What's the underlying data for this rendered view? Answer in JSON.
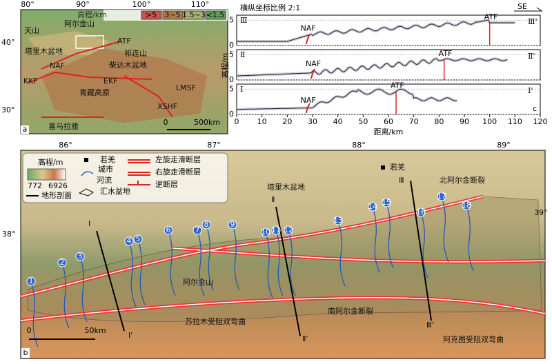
{
  "panel_a": {
    "label": "a",
    "lon_labels": [
      "80°",
      "90°",
      "100°",
      "110°"
    ],
    "lat_labels": [
      "40°",
      "30°"
    ],
    "legend_title": "高程/km",
    "legend": [
      {
        "label": ">5",
        "color": "#c9524a"
      },
      {
        "label": "3~5",
        "color": "#b07b4a"
      },
      {
        "label": "1.5~3",
        "color": "#a8b070"
      },
      {
        "label": "<1.5",
        "color": "#5f9e5a"
      }
    ],
    "places": [
      "天山",
      "阿尔金山",
      "塔里木盆地",
      "ATF",
      "祁连山",
      "柴达木盆地",
      "NAF",
      "KKF",
      "EKF",
      "青藏高原",
      "XSHF",
      "LMSF",
      "喜马拉雅"
    ],
    "scale": [
      "0",
      "500km"
    ]
  },
  "panel_c": {
    "label": "c",
    "title": "横纵坐标比例 2:1",
    "direction": "SE",
    "xlim": [
      0,
      120
    ],
    "xticks": [
      0,
      10,
      20,
      30,
      40,
      50,
      60,
      70,
      80,
      90,
      100,
      110,
      120
    ],
    "xlabel": "距离/km",
    "ylabel": "高程/m",
    "profiles": [
      {
        "start": "Ⅲ",
        "end": "Ⅲ'",
        "ylim": [
          0,
          6
        ],
        "yticks": [
          0,
          5
        ],
        "faults": [
          "NAF",
          "ATF"
        ]
      },
      {
        "start": "Ⅱ",
        "end": "Ⅱ'",
        "ylim": [
          0,
          6
        ],
        "yticks": [
          0,
          5
        ],
        "faults": [
          "NAF",
          "ATF"
        ]
      },
      {
        "start": "Ⅰ",
        "end": "Ⅰ'",
        "ylim": [
          0,
          6
        ],
        "yticks": [
          0,
          5
        ],
        "faults": [
          "NAF",
          "ATF"
        ]
      }
    ]
  },
  "panel_b": {
    "label": "b",
    "lon_labels": [
      "86°",
      "87°",
      "88°",
      "89°"
    ],
    "lat_labels": [
      "38°",
      "39°"
    ],
    "legend": {
      "title": "高程/m",
      "min": "772",
      "max": "6926",
      "items": [
        "若羌",
        "城市",
        "河流",
        "汇水盆地",
        "左旋走滑断层",
        "右旋走滑断层",
        "逆断层",
        "地形剖面"
      ]
    },
    "places": [
      "塔里木盆地",
      "若羌",
      "Ⅲ",
      "北阿尔金断裂",
      "Ⅱ",
      "Ⅰ",
      "阿尔金山",
      "南阿尔金断裂",
      "苏拉木受阻双弯曲",
      "阿克图受阻双弯曲",
      "Ⅰ'",
      "Ⅱ'",
      "Ⅲ'"
    ],
    "rivers": [
      "1",
      "2",
      "3",
      "4",
      "5",
      "6",
      "7",
      "8",
      "9",
      "10",
      "11",
      "12",
      "13",
      "14",
      "15",
      "16",
      "17",
      "18"
    ],
    "scale": [
      "0",
      "50km"
    ]
  }
}
